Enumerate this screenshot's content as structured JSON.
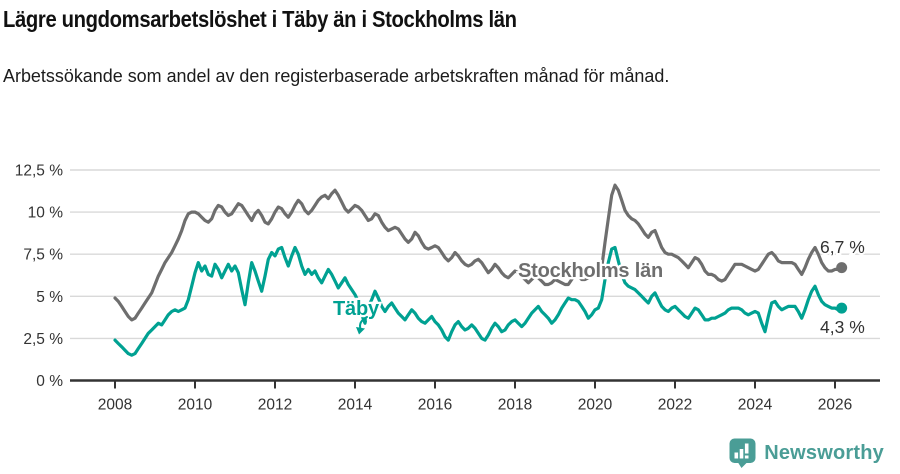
{
  "header": {
    "title": "Lägre ungdomsarbetslöshet i Täby än i Stockholms län",
    "subtitle": "Arbetssökande som andel av den registerbaserade arbetskraften månad för månad."
  },
  "footer": {
    "brand": "Newsworthy",
    "brand_color": "#4a9d96",
    "logo_icon": "bar-chart-speech-bubble-icon"
  },
  "chart_data": {
    "type": "line",
    "title": "Lägre ungdomsarbetslöshet i Täby än i Stockholms län",
    "subtitle": "Arbetssökande som andel av den registerbaserade arbetskraften månad för månad.",
    "xlabel": "",
    "ylabel": "",
    "ylim": [
      0,
      12.5
    ],
    "xlim": [
      2007.0,
      2027.1
    ],
    "grid": "horizontal-only",
    "legend_position": "inline-labels-on-lines",
    "x_unit": "year (monthly resolution)",
    "y_unit": "percent",
    "y_ticks": [
      {
        "v": 0,
        "label": "0 %"
      },
      {
        "v": 2.5,
        "label": "2,5 %"
      },
      {
        "v": 5,
        "label": "5 %"
      },
      {
        "v": 7.5,
        "label": "7,5 %"
      },
      {
        "v": 10,
        "label": "10 %"
      },
      {
        "v": 12.5,
        "label": "12,5 %"
      }
    ],
    "x_ticks": [
      {
        "v": 2008,
        "label": "2008"
      },
      {
        "v": 2010,
        "label": "2010"
      },
      {
        "v": 2012,
        "label": "2012"
      },
      {
        "v": 2014,
        "label": "2014"
      },
      {
        "v": 2016,
        "label": "2016"
      },
      {
        "v": 2018,
        "label": "2018"
      },
      {
        "v": 2020,
        "label": "2020"
      },
      {
        "v": 2022,
        "label": "2022"
      },
      {
        "v": 2024,
        "label": "2024"
      },
      {
        "v": 2026,
        "label": "2026"
      }
    ],
    "grid_color": "#d9d9d9",
    "axis_color": "#333333",
    "text_color": "#333333",
    "x_start": 2008.0,
    "x_step": 0.0833333,
    "series": [
      {
        "name": "Stockholms län",
        "color": "#6e6e6e",
        "end_value": 6.7,
        "end_label": "6,7 %",
        "values": [
          4.9,
          4.7,
          4.4,
          4.1,
          3.8,
          3.6,
          3.7,
          4.0,
          4.3,
          4.6,
          4.9,
          5.2,
          5.7,
          6.2,
          6.6,
          7.0,
          7.3,
          7.6,
          8.0,
          8.4,
          8.9,
          9.5,
          9.9,
          10.0,
          10.0,
          9.9,
          9.7,
          9.5,
          9.4,
          9.6,
          10.1,
          10.4,
          10.3,
          10.0,
          9.8,
          9.9,
          10.2,
          10.5,
          10.4,
          10.1,
          9.8,
          9.5,
          9.9,
          10.1,
          9.8,
          9.4,
          9.3,
          9.6,
          10.0,
          10.3,
          10.2,
          9.9,
          9.7,
          10.0,
          10.4,
          10.7,
          10.5,
          10.1,
          9.9,
          10.1,
          10.4,
          10.7,
          10.9,
          11.0,
          10.8,
          11.1,
          11.3,
          11.0,
          10.6,
          10.2,
          10.0,
          10.2,
          10.4,
          10.3,
          10.1,
          9.8,
          9.5,
          9.6,
          9.9,
          9.8,
          9.4,
          9.1,
          8.9,
          9.0,
          9.1,
          9.0,
          8.7,
          8.4,
          8.2,
          8.4,
          8.8,
          8.6,
          8.2,
          7.9,
          7.8,
          7.9,
          8.0,
          7.9,
          7.6,
          7.3,
          7.1,
          7.3,
          7.6,
          7.4,
          7.1,
          6.9,
          6.8,
          6.9,
          7.1,
          7.2,
          7.0,
          6.7,
          6.4,
          6.6,
          6.9,
          6.7,
          6.4,
          6.2,
          6.1,
          6.3,
          6.5,
          6.4,
          6.2,
          6.0,
          5.8,
          6.0,
          6.2,
          6.1,
          5.9,
          5.7,
          5.7,
          5.8,
          6.0,
          5.9,
          5.8,
          5.7,
          5.7,
          6.0,
          6.3,
          6.2,
          6.0,
          6.0,
          6.1,
          6.2,
          6.3,
          6.3,
          6.7,
          8.2,
          9.6,
          11.0,
          11.6,
          11.3,
          10.7,
          10.1,
          9.8,
          9.6,
          9.5,
          9.3,
          9.0,
          8.7,
          8.5,
          8.8,
          8.9,
          8.4,
          7.9,
          7.6,
          7.5,
          7.5,
          7.4,
          7.3,
          7.1,
          6.9,
          6.7,
          7.0,
          7.3,
          7.2,
          6.9,
          6.5,
          6.3,
          6.3,
          6.2,
          6.0,
          5.9,
          6.0,
          6.3,
          6.6,
          6.9,
          6.9,
          6.9,
          6.8,
          6.7,
          6.6,
          6.5,
          6.6,
          6.9,
          7.2,
          7.5,
          7.6,
          7.4,
          7.1,
          7.0,
          7.0,
          7.0,
          7.0,
          6.9,
          6.6,
          6.3,
          6.7,
          7.2,
          7.6,
          7.9,
          7.5,
          7.0,
          6.7,
          6.5,
          6.5,
          6.6,
          6.6,
          6.7
        ]
      },
      {
        "name": "Täby",
        "color": "#00a192",
        "end_value": 4.3,
        "end_label": "4,3 %",
        "values": [
          2.4,
          2.2,
          2.0,
          1.8,
          1.6,
          1.5,
          1.6,
          1.9,
          2.2,
          2.5,
          2.8,
          3.0,
          3.2,
          3.4,
          3.3,
          3.6,
          3.9,
          4.1,
          4.2,
          4.1,
          4.2,
          4.3,
          4.8,
          5.6,
          6.4,
          7.0,
          6.5,
          6.8,
          6.3,
          6.2,
          6.9,
          6.6,
          6.1,
          6.5,
          6.9,
          6.5,
          6.8,
          6.4,
          5.4,
          4.5,
          5.8,
          7.0,
          6.5,
          5.9,
          5.3,
          6.2,
          7.2,
          7.6,
          7.4,
          7.8,
          7.9,
          7.3,
          6.8,
          7.4,
          7.9,
          7.5,
          6.8,
          6.3,
          6.6,
          6.3,
          6.5,
          6.1,
          5.8,
          6.2,
          6.6,
          6.3,
          5.9,
          5.5,
          5.8,
          6.1,
          5.7,
          5.4,
          5.1,
          4.7,
          3.9,
          3.4,
          4.4,
          4.8,
          5.3,
          4.9,
          4.4,
          4.1,
          4.4,
          4.6,
          4.3,
          4.0,
          3.8,
          3.6,
          3.9,
          4.2,
          4.0,
          3.7,
          3.5,
          3.4,
          3.6,
          3.8,
          3.5,
          3.3,
          3.0,
          2.6,
          2.4,
          2.9,
          3.3,
          3.5,
          3.2,
          3.0,
          3.1,
          3.3,
          3.1,
          2.8,
          2.5,
          2.4,
          2.7,
          3.1,
          3.4,
          3.2,
          2.9,
          3.0,
          3.3,
          3.5,
          3.6,
          3.4,
          3.2,
          3.4,
          3.7,
          4.0,
          4.2,
          4.4,
          4.1,
          3.9,
          3.7,
          3.4,
          3.6,
          3.9,
          4.3,
          4.6,
          4.9,
          4.8,
          4.8,
          4.7,
          4.4,
          4.1,
          3.7,
          3.9,
          4.2,
          4.3,
          4.8,
          6.0,
          7.0,
          7.8,
          7.9,
          7.1,
          6.3,
          5.8,
          5.6,
          5.5,
          5.4,
          5.2,
          5.0,
          4.8,
          4.6,
          5.0,
          5.2,
          4.8,
          4.4,
          4.2,
          4.1,
          4.3,
          4.4,
          4.2,
          4.0,
          3.8,
          3.7,
          4.0,
          4.3,
          4.2,
          3.9,
          3.6,
          3.6,
          3.7,
          3.7,
          3.8,
          3.9,
          4.0,
          4.2,
          4.3,
          4.3,
          4.3,
          4.2,
          4.0,
          3.9,
          4.0,
          4.1,
          4.0,
          3.4,
          2.9,
          3.8,
          4.6,
          4.7,
          4.4,
          4.2,
          4.3,
          4.4,
          4.4,
          4.4,
          4.1,
          3.7,
          4.2,
          4.8,
          5.3,
          5.6,
          5.1,
          4.7,
          4.5,
          4.4,
          4.3,
          4.3,
          4.2,
          4.3
        ]
      }
    ],
    "annotations": [
      {
        "text": "Stockholms län",
        "series": "Stockholms län",
        "color": "#6e6e6e"
      },
      {
        "text": "Täby",
        "series": "Täby",
        "color": "#00a192",
        "arrow": "down"
      }
    ]
  }
}
